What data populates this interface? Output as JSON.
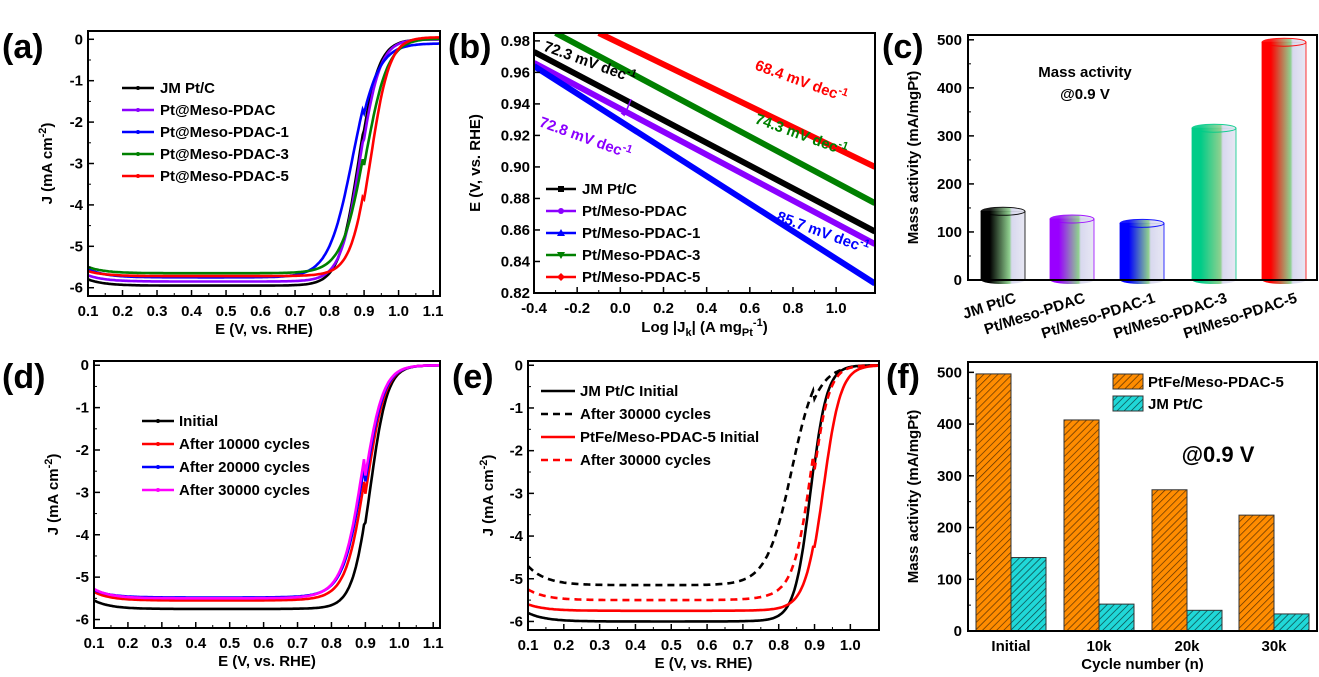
{
  "figure": {
    "panel_labels": [
      "(a)",
      "(b)",
      "(c)",
      "(d)",
      "(e)",
      "(f)"
    ]
  },
  "chart_data": [
    {
      "id": "a",
      "type": "line",
      "title": "",
      "xlabel": "E (V, vs. RHE)",
      "ylabel": "J (mA cm-2)",
      "ylabel_parts": [
        "J (mA cm",
        "-2",
        ")"
      ],
      "xlim": [
        0.1,
        1.12
      ],
      "ylim": [
        -6.2,
        0.2
      ],
      "xticks": [
        0.1,
        0.2,
        0.3,
        0.4,
        0.5,
        0.6,
        0.7,
        0.8,
        0.9,
        1.0,
        1.1
      ],
      "xtick_labels": [
        "0.1",
        "0.2",
        "0.3",
        "0.4",
        "0.5",
        "0.6",
        "0.7",
        "0.8",
        "0.9",
        "1.0",
        "1.1"
      ],
      "yticks": [
        0,
        -1,
        -2,
        -3,
        -4,
        -5,
        -6
      ],
      "ytick_labels": [
        "0",
        "-1",
        "-2",
        "-3",
        "-4",
        "-5",
        "-6"
      ],
      "legend_position": "upper-left",
      "series": [
        {
          "name": "JM Pt/C",
          "color": "#000000",
          "style": "solid",
          "plateau": -5.95,
          "start": -5.8,
          "half_wave": 0.885,
          "width": 0.028,
          "knee": 0.05,
          "end": 0.0
        },
        {
          "name": "Pt@Meso-PDAC",
          "color": "#8b00ff",
          "style": "solid",
          "plateau": -5.85,
          "start": -5.7,
          "half_wave": 0.89,
          "width": 0.028,
          "knee": 0.06,
          "end": 0.0
        },
        {
          "name": "Pt@Meso-PDAC-1",
          "color": "#0000ff",
          "style": "solid",
          "plateau": -5.75,
          "start": -5.55,
          "half_wave": 0.87,
          "width": 0.035,
          "knee": 0.15,
          "end": -0.1
        },
        {
          "name": "Pt@Meso-PDAC-3",
          "color": "#008000",
          "style": "solid",
          "plateau": -5.65,
          "start": -5.5,
          "half_wave": 0.905,
          "width": 0.032,
          "knee": 0.12,
          "end": 0.02
        },
        {
          "name": "Pt@Meso-PDAC-5",
          "color": "#ff0000",
          "style": "solid",
          "plateau": -5.72,
          "start": -5.6,
          "half_wave": 0.92,
          "width": 0.027,
          "knee": 0.07,
          "end": 0.05
        }
      ]
    },
    {
      "id": "b",
      "type": "line",
      "title": "",
      "xlabel": "Log |Jk| (A mgPt-1)",
      "xlabel_parts": [
        "Log |J",
        "k",
        "| (A mg",
        "Pt",
        "-1",
        ")"
      ],
      "ylabel": "E (V, vs. RHE)",
      "xlim": [
        -0.4,
        1.18
      ],
      "ylim": [
        0.82,
        0.985
      ],
      "xticks": [
        -0.4,
        -0.2,
        0.0,
        0.2,
        0.4,
        0.6,
        0.8,
        1.0
      ],
      "xtick_labels": [
        "-0.4",
        "-0.2",
        "0.0",
        "0.2",
        "0.4",
        "0.6",
        "0.8",
        "1.0"
      ],
      "yticks": [
        0.82,
        0.84,
        0.86,
        0.88,
        0.9,
        0.92,
        0.94,
        0.96,
        0.98
      ],
      "ytick_labels": [
        "0.82",
        "0.84",
        "0.86",
        "0.88",
        "0.90",
        "0.92",
        "0.94",
        "0.96",
        "0.98"
      ],
      "legend_position": "lower-left",
      "series": [
        {
          "name": "JM Pt/C",
          "color": "#000000",
          "marker": "square",
          "x": [
            -0.4,
            1.18
          ],
          "y": [
            0.973,
            0.859
          ]
        },
        {
          "name": "Pt/Meso-PDAC",
          "color": "#8b00ff",
          "marker": "circle",
          "x": [
            -0.4,
            1.18
          ],
          "y": [
            0.966,
            0.851
          ]
        },
        {
          "name": "Pt/Meso-PDAC-1",
          "color": "#0000ff",
          "marker": "triangle-up",
          "x": [
            -0.4,
            1.18
          ],
          "y": [
            0.964,
            0.826
          ]
        },
        {
          "name": "Pt/Meso-PDAC-3",
          "color": "#008000",
          "marker": "triangle-down",
          "x": [
            -0.3,
            1.18
          ],
          "y": [
            0.985,
            0.877
          ]
        },
        {
          "name": "Pt/Meso-PDAC-5",
          "color": "#ff0000",
          "marker": "diamond",
          "x": [
            -0.1,
            1.18
          ],
          "y": [
            0.985,
            0.9
          ]
        }
      ],
      "annotations": [
        {
          "text": "72.3 mV dec",
          "sup": "-1",
          "color": "#000000",
          "x": -0.36,
          "y": 0.974,
          "angle": 20
        },
        {
          "text": "68.4 mV dec",
          "sup": "-1",
          "color": "#ff0000",
          "x": 0.62,
          "y": 0.962,
          "angle": 20
        },
        {
          "text": "74.3 mV dec",
          "sup": "-1",
          "color": "#008000",
          "x": 0.62,
          "y": 0.928,
          "angle": 20
        },
        {
          "text": "72.8 mV dec",
          "sup": "-1",
          "color": "#8b00ff",
          "x": -0.38,
          "y": 0.926,
          "angle": 20
        },
        {
          "text": "85.7 mV dec",
          "sup": "-1",
          "color": "#0000ff",
          "x": 0.72,
          "y": 0.866,
          "angle": 20
        }
      ]
    },
    {
      "id": "c",
      "type": "bar",
      "title": "",
      "annotation_lines": [
        "Mass activity",
        "@0.9 V"
      ],
      "xlabel": "",
      "ylabel": "Mass activity (mA/mgPt)",
      "ylim": [
        0,
        510
      ],
      "yticks": [
        0,
        100,
        200,
        300,
        400,
        500
      ],
      "ytick_labels": [
        "0",
        "100",
        "200",
        "300",
        "400",
        "500"
      ],
      "categories": [
        "JM Pt/C",
        "Pt/Meso-PDAC",
        "Pt/Meso-PDAC-1",
        "Pt/Meso-PDAC-3",
        "Pt/Meso-PDAC-5"
      ],
      "values": [
        143,
        127,
        118,
        316,
        495
      ],
      "colors": [
        "#000000",
        "#9900ff",
        "#0000ff",
        "#00cc88",
        "#ff0000"
      ]
    },
    {
      "id": "d",
      "type": "line",
      "title": "",
      "xlabel": "E (V, vs. RHE)",
      "ylabel": "J (mA cm-2)",
      "ylabel_parts": [
        "J (mA cm",
        "-2",
        ")"
      ],
      "xlim": [
        0.1,
        1.12
      ],
      "ylim": [
        -6.2,
        0.1
      ],
      "xticks": [
        0.1,
        0.2,
        0.3,
        0.4,
        0.5,
        0.6,
        0.7,
        0.8,
        0.9,
        1.0,
        1.1
      ],
      "xtick_labels": [
        "0.1",
        "0.2",
        "0.3",
        "0.4",
        "0.5",
        "0.6",
        "0.7",
        "0.8",
        "0.9",
        "1.0",
        "1.1"
      ],
      "yticks": [
        0,
        -1,
        -2,
        -3,
        -4,
        -5,
        -6
      ],
      "ytick_labels": [
        "0",
        "-1",
        "-2",
        "-3",
        "-4",
        "-5",
        "-6"
      ],
      "legend_position": "upper-left",
      "series": [
        {
          "name": "Initial",
          "color": "#000000",
          "style": "solid",
          "plateau": -5.75,
          "start": -5.55,
          "half_wave": 0.915,
          "width": 0.025,
          "knee": 0.05,
          "end": 0.0
        },
        {
          "name": "After 10000 cycles",
          "color": "#ff0000",
          "style": "solid",
          "plateau": -5.55,
          "start": -5.35,
          "half_wave": 0.905,
          "width": 0.027,
          "knee": 0.18,
          "end": 0.0
        },
        {
          "name": "After 20000 cycles",
          "color": "#0000ff",
          "style": "solid",
          "plateau": -5.48,
          "start": -5.3,
          "half_wave": 0.9,
          "width": 0.028,
          "knee": 0.22,
          "end": 0.0
        },
        {
          "name": "After 30000 cycles",
          "color": "#ff00ff",
          "style": "solid",
          "plateau": -5.5,
          "start": -5.28,
          "half_wave": 0.897,
          "width": 0.028,
          "knee": 0.25,
          "end": 0.0
        }
      ]
    },
    {
      "id": "e",
      "type": "line",
      "title": "",
      "xlabel": "E (V, vs. RHE)",
      "ylabel": "J (mA cm-2)",
      "ylabel_parts": [
        "J (mA cm",
        "-2",
        ")"
      ],
      "xlim": [
        0.1,
        1.08
      ],
      "ylim": [
        -6.2,
        0.1
      ],
      "xticks": [
        0.1,
        0.2,
        0.3,
        0.4,
        0.5,
        0.6,
        0.7,
        0.8,
        0.9,
        1.0
      ],
      "xtick_labels": [
        "0.1",
        "0.2",
        "0.3",
        "0.4",
        "0.5",
        "0.6",
        "0.7",
        "0.8",
        "0.9",
        "1.0"
      ],
      "yticks": [
        0,
        -1,
        -2,
        -3,
        -4,
        -5,
        -6
      ],
      "ytick_labels": [
        "0",
        "-1",
        "-2",
        "-3",
        "-4",
        "-5",
        "-6"
      ],
      "legend_position": "upper-left",
      "series": [
        {
          "name": "JM Pt/C Initial",
          "color": "#000000",
          "style": "solid",
          "plateau": -6.0,
          "start": -5.8,
          "half_wave": 0.89,
          "width": 0.022,
          "knee": 0.06,
          "end": 0.0
        },
        {
          "name": "After 30000 cycles",
          "color": "#000000",
          "style": "dashed",
          "plateau": -5.15,
          "start": -4.7,
          "half_wave": 0.84,
          "width": 0.035,
          "knee": 0.35,
          "end": 0.0
        },
        {
          "name": "PtFe/Meso-PDAC-5 Initial",
          "color": "#ff0000",
          "style": "solid",
          "plateau": -5.75,
          "start": -5.6,
          "half_wave": 0.925,
          "width": 0.024,
          "knee": 0.05,
          "end": 0.0
        },
        {
          "name": "After 30000 cycles",
          "color": "#ff0000",
          "style": "dashed",
          "plateau": -5.5,
          "start": -5.25,
          "half_wave": 0.895,
          "width": 0.023,
          "knee": 0.25,
          "end": 0.0
        }
      ]
    },
    {
      "id": "f",
      "type": "bar",
      "title": "",
      "annotation_lines": [
        "@0.9 V"
      ],
      "xlabel": "Cycle number (n)",
      "ylabel": "Mass activity (mA/mgPt)",
      "ylim": [
        0,
        520
      ],
      "yticks": [
        0,
        100,
        200,
        300,
        400,
        500
      ],
      "ytick_labels": [
        "0",
        "100",
        "200",
        "300",
        "400",
        "500"
      ],
      "categories": [
        "Initial",
        "10k",
        "20k",
        "30k"
      ],
      "legend_position": "top-right",
      "series": [
        {
          "name": "PtFe/Meso-PDAC-5",
          "color": "#ff8c00",
          "values": [
            497,
            408,
            273,
            224
          ]
        },
        {
          "name": "JM Pt/C",
          "color": "#20d8d8",
          "values": [
            142,
            52,
            40,
            33
          ]
        }
      ]
    }
  ]
}
